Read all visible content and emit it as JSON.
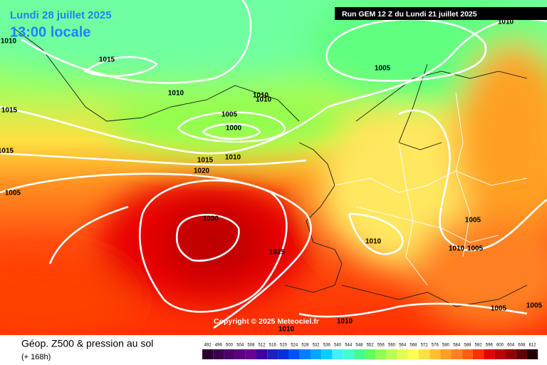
{
  "header": {
    "date": "Lundi 28 juillet 2025",
    "time": "13:00 locale",
    "run": "Run GEM 12 Z du Lundi 21 juillet 2025"
  },
  "copyright": "Copyright © 2025 Meteociel.fr",
  "footer": {
    "title": "Géop. Z500 & pression au sol",
    "lead": "(+ 168h)"
  },
  "isobar_labels": [
    1010,
    1015,
    1005,
    1010,
    1010,
    1010,
    1010,
    1015,
    1005,
    1000,
    1015,
    1015,
    1010,
    1020,
    1005,
    1030,
    1025,
    1010,
    1005,
    1010,
    1005,
    1005,
    1005,
    1010,
    1010
  ],
  "legend": {
    "values": [
      492,
      496,
      500,
      504,
      508,
      512,
      516,
      520,
      524,
      528,
      532,
      536,
      540,
      544,
      548,
      552,
      556,
      560,
      564,
      568,
      572,
      576,
      580,
      584,
      588,
      592,
      596,
      600,
      604,
      608,
      612
    ],
    "colors": [
      "#2b0030",
      "#3c0050",
      "#4e006a",
      "#5c0080",
      "#6a0090",
      "#4000a0",
      "#2020c0",
      "#0030e0",
      "#0050ff",
      "#0080ff",
      "#00a8ff",
      "#00d0ff",
      "#40f0ff",
      "#40ffd0",
      "#40ff90",
      "#60ff60",
      "#90ff50",
      "#b8ff50",
      "#e0ff50",
      "#ffff50",
      "#ffe040",
      "#ffc030",
      "#ffa020",
      "#ff8020",
      "#ff6010",
      "#ff3000",
      "#e80000",
      "#c00000",
      "#900000",
      "#600000",
      "#200000"
    ]
  }
}
